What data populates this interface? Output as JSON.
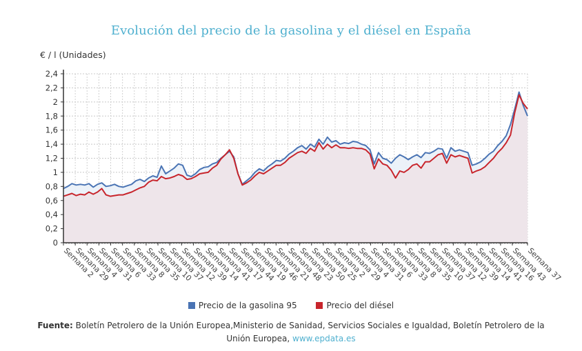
{
  "chart_data": {
    "type": "area",
    "title": "Evolución del precio de la gasolina y el diésel en España",
    "ylabel": "€ / l (Unidades)",
    "xlabel": "",
    "ylim": [
      0,
      2.4
    ],
    "yticks": [
      "0",
      "0,2",
      "0,4",
      "0,6",
      "0,8",
      "1",
      "1,2",
      "1,4",
      "1,6",
      "1,8",
      "2",
      "2,2",
      "2,4"
    ],
    "ytick_values": [
      0,
      0.2,
      0.4,
      0.6,
      0.8,
      1,
      1.2,
      1.4,
      1.6,
      1.8,
      2,
      2.2,
      2.4
    ],
    "grid": true,
    "legend_position": "bottom",
    "x_tick_labels": [
      "Semana 2",
      "Semana 29",
      "Semana 4",
      "Semana 31",
      "Semana 6",
      "Semana 33",
      "Semana 8",
      "Semana 35",
      "Semana 10",
      "Semana 37",
      "Semana 12",
      "Semana 39",
      "Semana 14",
      "Semana 41",
      "Semana 17",
      "Semana 44",
      "Semana 19",
      "Semana 46",
      "Semana 21",
      "Semana 48",
      "Semana 23",
      "Semana 50",
      "Semana 25",
      "Semana 2",
      "Semana 29",
      "Semana 4",
      "Semana 31",
      "Semana 6",
      "Semana 33",
      "Semana 8",
      "Semana 35",
      "Semana 10",
      "Semana 37",
      "Semana 12",
      "Semana 39",
      "Semana 14",
      "Semana 41",
      "Semana 16",
      "Semana 43",
      "Semana 37"
    ],
    "series": [
      {
        "name": "Precio de la gasolina 95",
        "color": "#4a74b4",
        "values": [
          0.77,
          0.8,
          0.84,
          0.82,
          0.83,
          0.82,
          0.84,
          0.79,
          0.83,
          0.85,
          0.8,
          0.81,
          0.83,
          0.8,
          0.79,
          0.81,
          0.83,
          0.88,
          0.9,
          0.87,
          0.92,
          0.95,
          0.93,
          1.09,
          0.98,
          1.02,
          1.06,
          1.12,
          1.1,
          0.96,
          0.94,
          0.98,
          1.04,
          1.07,
          1.08,
          1.12,
          1.14,
          1.2,
          1.25,
          1.3,
          1.22,
          0.98,
          0.83,
          0.88,
          0.93,
          1.0,
          1.05,
          1.02,
          1.08,
          1.12,
          1.17,
          1.16,
          1.2,
          1.26,
          1.3,
          1.35,
          1.38,
          1.33,
          1.4,
          1.36,
          1.47,
          1.4,
          1.5,
          1.43,
          1.45,
          1.4,
          1.42,
          1.41,
          1.44,
          1.43,
          1.4,
          1.38,
          1.32,
          1.12,
          1.28,
          1.2,
          1.18,
          1.13,
          1.2,
          1.25,
          1.22,
          1.18,
          1.22,
          1.25,
          1.21,
          1.28,
          1.27,
          1.3,
          1.34,
          1.33,
          1.2,
          1.35,
          1.3,
          1.32,
          1.3,
          1.28,
          1.1,
          1.12,
          1.15,
          1.2,
          1.26,
          1.3,
          1.38,
          1.44,
          1.52,
          1.68,
          1.9,
          2.14,
          1.95,
          1.8
        ]
      },
      {
        "name": "Precio del diésel",
        "color": "#c8252c",
        "values": [
          0.66,
          0.68,
          0.7,
          0.67,
          0.69,
          0.68,
          0.72,
          0.69,
          0.72,
          0.77,
          0.68,
          0.66,
          0.67,
          0.68,
          0.68,
          0.7,
          0.72,
          0.75,
          0.78,
          0.8,
          0.86,
          0.89,
          0.88,
          0.94,
          0.91,
          0.92,
          0.94,
          0.97,
          0.95,
          0.9,
          0.91,
          0.94,
          0.98,
          0.99,
          1.0,
          1.06,
          1.1,
          1.19,
          1.25,
          1.32,
          1.2,
          0.98,
          0.82,
          0.85,
          0.89,
          0.95,
          1.0,
          0.98,
          1.02,
          1.06,
          1.1,
          1.1,
          1.14,
          1.2,
          1.24,
          1.28,
          1.3,
          1.27,
          1.34,
          1.3,
          1.42,
          1.33,
          1.4,
          1.35,
          1.39,
          1.35,
          1.35,
          1.34,
          1.35,
          1.34,
          1.34,
          1.32,
          1.26,
          1.05,
          1.19,
          1.12,
          1.1,
          1.03,
          0.92,
          1.02,
          1.0,
          1.04,
          1.1,
          1.12,
          1.06,
          1.15,
          1.15,
          1.2,
          1.25,
          1.27,
          1.13,
          1.25,
          1.22,
          1.24,
          1.22,
          1.2,
          0.99,
          1.02,
          1.04,
          1.08,
          1.14,
          1.2,
          1.28,
          1.34,
          1.42,
          1.53,
          1.85,
          2.1,
          1.98,
          1.9
        ]
      }
    ]
  },
  "header": {
    "title": "Evolución del precio de la gasolina y el diésel en España",
    "unit_label": "€ / l (Unidades)"
  },
  "legend": {
    "items": [
      {
        "label": "Precio de la gasolina 95",
        "color": "#4a74b4"
      },
      {
        "label": "Precio del diésel",
        "color": "#c8252c"
      }
    ]
  },
  "source": {
    "prefix": "Fuente:",
    "text": " Boletín Petrolero de la Unión Europea,Ministerio de Sanidad, Servicios Sociales e Igualdad, Boletín Petrolero de la Unión Europea, ",
    "link": "www.epdata.es"
  }
}
